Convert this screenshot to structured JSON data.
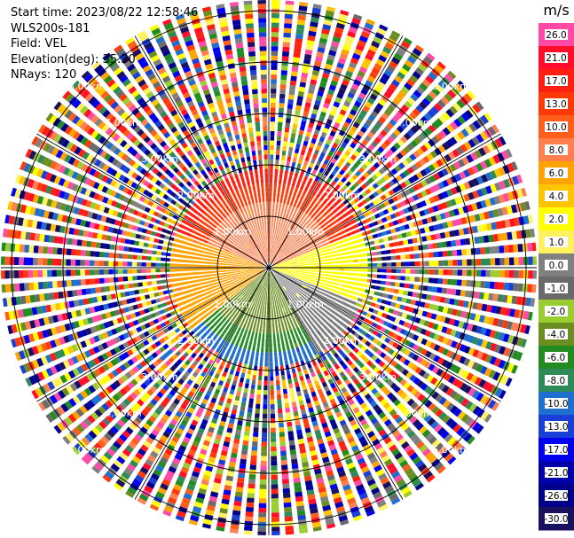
{
  "header": {
    "start_time": "Start time: 2023/08/22 12:58:46",
    "instrument": "WLS200s-181",
    "field": "Field: VEL",
    "elevation": "Elevation(deg): 35.30",
    "nrays": "NRays: 120"
  },
  "chart_data": {
    "type": "heatmap",
    "projection": "polar PPI",
    "field": "VEL",
    "units": "m/s",
    "n_rays": 120,
    "elevation_deg": 35.3,
    "range_ring_labels_km": [
      "1.00km",
      "2.00km",
      "3.00km",
      "4.00km",
      "5.00km"
    ],
    "range_ring_labels_inner_km": [
      "1.00km",
      "2.00km"
    ],
    "colorbar": {
      "title": "m/s",
      "ticks": [
        "26.0",
        "21.0",
        "17.0",
        "13.0",
        "10.0",
        "8.0",
        "6.0",
        "4.0",
        "2.0",
        "1.0",
        "0.0",
        "-1.0",
        "-2.0",
        "-4.0",
        "-6.0",
        "-8.0",
        "-10.0",
        "-13.0",
        "-17.0",
        "-21.0",
        "-26.0",
        "-30.0"
      ],
      "colors": [
        "#ff4aa6",
        "#ff0d2a",
        "#ff1f12",
        "#ff3a08",
        "#ff5e1a",
        "#ff7f4f",
        "#ffa300",
        "#ffc400",
        "#ffff00",
        "#fff25e",
        "#808080",
        "#6a6a6a",
        "#9acd32",
        "#6b8e23",
        "#228b22",
        "#2e8b57",
        "#1e6fd0",
        "#1a3fd6",
        "#0000ee",
        "#0000aa",
        "#00008b",
        "#1a1060"
      ]
    },
    "signal_region": {
      "description_sectors": [
        {
          "azimuth_from": 290,
          "azimuth_to": 70,
          "value": 21.0
        },
        {
          "azimuth_from": 230,
          "azimuth_to": 290,
          "value": 6.0
        },
        {
          "azimuth_from": 70,
          "azimuth_to": 110,
          "value": 2.0
        },
        {
          "azimuth_from": 110,
          "azimuth_to": 150,
          "value": 0.0
        },
        {
          "azimuth_from": 150,
          "azimuth_to": 230,
          "value": -6.0
        }
      ],
      "valid_range_km": 2.0,
      "max_range_km": 5.5
    }
  }
}
